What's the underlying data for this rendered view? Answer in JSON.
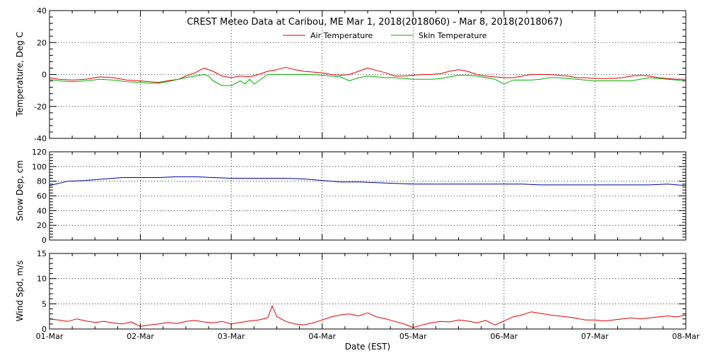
{
  "chart_data": {
    "type": "line",
    "title": "CREST Meteo Data at Caribou, ME   Mar  1, 2018(2018060) - Mar  8, 2018(2018067)",
    "xlabel": "Date (EST)",
    "x_tick_labels": [
      "01-Mar",
      "02-Mar",
      "03-Mar",
      "04-Mar",
      "05-Mar",
      "06-Mar",
      "07-Mar",
      "08-Mar"
    ],
    "x_range_days": [
      0,
      7
    ],
    "panels": [
      {
        "ylabel": "Temperature, Deg C",
        "ylim": [
          -40,
          40
        ],
        "y_ticks": [
          -40,
          -20,
          0,
          20,
          40
        ],
        "grid": true,
        "legend_position": "top-center",
        "series": [
          {
            "name": "Air Temperature",
            "color": "#e00000",
            "x": [
              0,
              0.1,
              0.25,
              0.4,
              0.55,
              0.7,
              0.85,
              1.0,
              1.1,
              1.2,
              1.3,
              1.42,
              1.5,
              1.6,
              1.7,
              1.8,
              1.9,
              2.0,
              2.1,
              2.2,
              2.3,
              2.4,
              2.5,
              2.6,
              2.7,
              2.8,
              2.9,
              3.0,
              3.1,
              3.2,
              3.3,
              3.4,
              3.5,
              3.6,
              3.7,
              3.8,
              3.9,
              4.0,
              4.1,
              4.2,
              4.3,
              4.4,
              4.5,
              4.6,
              4.7,
              4.8,
              4.9,
              5.0,
              5.1,
              5.2,
              5.3,
              5.4,
              5.5,
              5.6,
              5.7,
              5.8,
              5.9,
              6.0,
              6.1,
              6.2,
              6.3,
              6.4,
              6.5,
              6.6,
              6.7,
              6.8,
              6.9,
              7.0
            ],
            "y": [
              -2,
              -3,
              -3.5,
              -3,
              -1.5,
              -2,
              -3.5,
              -4,
              -4.5,
              -5,
              -4,
              -3,
              -1,
              1,
              4,
              2,
              -1,
              -2,
              -1,
              -1.5,
              0,
              2,
              3,
              4.5,
              3,
              2,
              1.5,
              1,
              0,
              -0.5,
              0,
              2,
              4,
              2.5,
              1,
              -1,
              -1,
              -0.5,
              0,
              0,
              0.5,
              2,
              3,
              2,
              0,
              -1,
              -1.5,
              -2,
              -2,
              -1,
              0,
              0,
              0,
              -0.5,
              -1,
              -2,
              -2,
              -2.5,
              -2.5,
              -2.5,
              -2,
              -1,
              -0.5,
              -1,
              -2,
              -2.5,
              -3,
              -3
            ]
          },
          {
            "name": "Skin Temperature",
            "color": "#00b000",
            "x": [
              0,
              0.1,
              0.25,
              0.4,
              0.55,
              0.7,
              0.85,
              1.0,
              1.1,
              1.2,
              1.3,
              1.42,
              1.5,
              1.6,
              1.7,
              1.75,
              1.8,
              1.9,
              2.0,
              2.1,
              2.15,
              2.2,
              2.25,
              2.3,
              2.4,
              2.5,
              2.6,
              2.7,
              2.8,
              2.9,
              3.0,
              3.1,
              3.2,
              3.3,
              3.4,
              3.5,
              3.6,
              3.7,
              3.8,
              3.9,
              4.0,
              4.1,
              4.2,
              4.3,
              4.4,
              4.5,
              4.6,
              4.7,
              4.8,
              4.9,
              5.0,
              5.1,
              5.2,
              5.3,
              5.4,
              5.5,
              5.6,
              5.7,
              5.8,
              5.9,
              6.0,
              6.1,
              6.2,
              6.3,
              6.4,
              6.5,
              6.6,
              6.7,
              6.8,
              6.9,
              7.0
            ],
            "y": [
              -3,
              -4,
              -4.5,
              -4,
              -3,
              -3.5,
              -4.5,
              -5,
              -5.5,
              -5.5,
              -4.5,
              -3,
              -2,
              -1,
              0,
              -1,
              -4,
              -7,
              -7,
              -4,
              -6,
              -3,
              -6,
              -4,
              0,
              0,
              0,
              0,
              0,
              0,
              -0.5,
              -1,
              -1.5,
              -4,
              -2,
              -1,
              -1.5,
              -2,
              -2,
              -2.5,
              -3,
              -3,
              -3,
              -2.5,
              -1.5,
              -0.5,
              -0.5,
              -1,
              -2,
              -3,
              -6,
              -3.5,
              -3.5,
              -3.5,
              -3,
              -2,
              -2,
              -2.5,
              -3,
              -3.5,
              -4,
              -4,
              -4,
              -4,
              -4,
              -3,
              -2,
              -2.5,
              -3,
              -3.5,
              -4
            ]
          }
        ]
      },
      {
        "ylabel": "Snow Dep, cm",
        "ylim": [
          0,
          120
        ],
        "y_ticks": [
          0,
          20,
          40,
          60,
          80,
          100,
          120
        ],
        "grid": true,
        "series": [
          {
            "color": "#0000a0",
            "x": [
              0,
              0.2,
              0.4,
              0.6,
              0.8,
              1.0,
              1.2,
              1.4,
              1.6,
              1.8,
              2.0,
              2.2,
              2.4,
              2.6,
              2.8,
              3.0,
              3.2,
              3.4,
              3.6,
              3.8,
              4.0,
              4.2,
              4.4,
              4.6,
              4.8,
              5.0,
              5.2,
              5.4,
              5.6,
              5.8,
              6.0,
              6.2,
              6.4,
              6.6,
              6.8,
              7.0
            ],
            "y": [
              74,
              80,
              81,
              83,
              85,
              85,
              85,
              86,
              86,
              85,
              84,
              84,
              84,
              84,
              83,
              81,
              79,
              79,
              78,
              77,
              76,
              76,
              76,
              76,
              76,
              76,
              76,
              75,
              75,
              75,
              75,
              75,
              75,
              75,
              76,
              74
            ]
          }
        ]
      },
      {
        "ylabel": "Wind Spd, m/s",
        "ylim": [
          0,
          15
        ],
        "y_ticks": [
          0,
          5,
          10,
          15
        ],
        "grid": true,
        "series": [
          {
            "color": "#e00000",
            "x": [
              0,
              0.1,
              0.2,
              0.3,
              0.4,
              0.5,
              0.6,
              0.7,
              0.8,
              0.9,
              1.0,
              1.1,
              1.2,
              1.3,
              1.4,
              1.5,
              1.6,
              1.7,
              1.8,
              1.9,
              2.0,
              2.1,
              2.2,
              2.3,
              2.4,
              2.45,
              2.5,
              2.6,
              2.7,
              2.8,
              2.9,
              3.0,
              3.1,
              3.2,
              3.3,
              3.4,
              3.5,
              3.6,
              3.7,
              3.8,
              3.9,
              4.0,
              4.1,
              4.2,
              4.3,
              4.4,
              4.5,
              4.6,
              4.7,
              4.8,
              4.9,
              5.0,
              5.1,
              5.2,
              5.3,
              5.4,
              5.5,
              5.6,
              5.7,
              5.8,
              5.9,
              6.0,
              6.1,
              6.2,
              6.3,
              6.4,
              6.5,
              6.6,
              6.7,
              6.8,
              6.9,
              7.0
            ],
            "y": [
              2,
              1.8,
              1.5,
              2,
              1.6,
              1.3,
              1.5,
              1.2,
              1.0,
              1.4,
              0.5,
              0.8,
              1.0,
              1.3,
              1.1,
              1.5,
              1.7,
              1.4,
              1.2,
              1.5,
              1.0,
              1.3,
              1.6,
              1.8,
              2.2,
              4.6,
              2.5,
              1.5,
              1.0,
              0.8,
              1.2,
              1.8,
              2.4,
              2.8,
              3.0,
              2.6,
              3.2,
              2.4,
              2.0,
              1.5,
              1.0,
              0.3,
              0.8,
              1.2,
              1.5,
              1.4,
              1.8,
              1.6,
              1.2,
              1.7,
              0.8,
              1.6,
              2.4,
              2.8,
              3.4,
              3.1,
              2.8,
              2.6,
              2.4,
              2.1,
              1.8,
              1.8,
              1.6,
              1.8,
              2.0,
              2.2,
              2.0,
              2.2,
              2.4,
              2.6,
              2.4,
              2.8
            ]
          }
        ]
      }
    ]
  }
}
